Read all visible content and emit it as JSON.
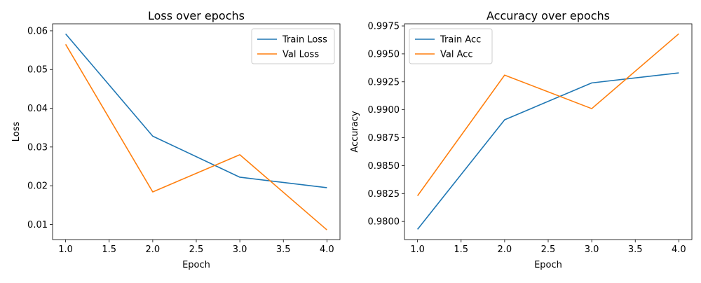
{
  "chart_data": [
    {
      "type": "line",
      "title": "Loss over epochs",
      "xlabel": "Epoch",
      "ylabel": "Loss",
      "xlim": [
        0.85,
        4.15
      ],
      "ylim": [
        0.0061,
        0.0618
      ],
      "xticks": [
        1.0,
        1.5,
        2.0,
        2.5,
        3.0,
        3.5,
        4.0
      ],
      "xtick_labels": [
        "1.0",
        "1.5",
        "2.0",
        "2.5",
        "3.0",
        "3.5",
        "4.0"
      ],
      "yticks": [
        0.01,
        0.02,
        0.03,
        0.04,
        0.05,
        0.06
      ],
      "ytick_labels": [
        "0.01",
        "0.02",
        "0.03",
        "0.04",
        "0.05",
        "0.06"
      ],
      "legend": "top-right",
      "grid": false,
      "x": [
        1,
        2,
        3,
        4
      ],
      "series": [
        {
          "name": "Train Loss",
          "color": "#1f77b4",
          "values": [
            0.0592,
            0.0328,
            0.0222,
            0.0195
          ]
        },
        {
          "name": "Val Loss",
          "color": "#ff7f0e",
          "values": [
            0.0565,
            0.0184,
            0.028,
            0.0086
          ]
        }
      ]
    },
    {
      "type": "line",
      "title": "Accuracy over epochs",
      "xlabel": "Epoch",
      "ylabel": "Accuracy",
      "xlim": [
        0.85,
        4.15
      ],
      "ylim": [
        0.97838,
        0.99769
      ],
      "xticks": [
        1.0,
        1.5,
        2.0,
        2.5,
        3.0,
        3.5,
        4.0
      ],
      "xtick_labels": [
        "1.0",
        "1.5",
        "2.0",
        "2.5",
        "3.0",
        "3.5",
        "4.0"
      ],
      "yticks": [
        0.98,
        0.9825,
        0.985,
        0.9875,
        0.99,
        0.9925,
        0.995,
        0.9975
      ],
      "ytick_labels": [
        "0.9800",
        "0.9825",
        "0.9850",
        "0.9875",
        "0.9900",
        "0.9925",
        "0.9950",
        "0.9975"
      ],
      "legend": "top-left",
      "grid": false,
      "x": [
        1,
        2,
        3,
        4
      ],
      "series": [
        {
          "name": "Train Acc",
          "color": "#1f77b4",
          "values": [
            0.9793,
            0.9891,
            0.9924,
            0.9933
          ]
        },
        {
          "name": "Val Acc",
          "color": "#ff7f0e",
          "values": [
            0.9823,
            0.9931,
            0.9901,
            0.9968
          ]
        }
      ]
    }
  ]
}
